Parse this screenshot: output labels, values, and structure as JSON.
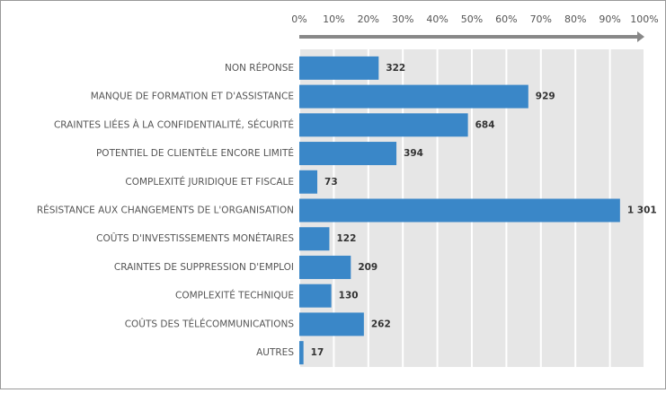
{
  "chart_data": {
    "type": "bar",
    "orientation": "horizontal",
    "categories": [
      "NON RÉPONSE",
      "MANQUE DE FORMATION ET D'ASSISTANCE",
      "CRAINTES LIÉES À LA CONFIDENTIALITÉ, SÉCURITÉ",
      "POTENTIEL DE CLIENTÈLE ENCORE LIMITÉ",
      "COMPLEXITÉ JURIDIQUE ET FISCALE",
      "RÉSISTANCE AUX CHANGEMENTS DE L'ORGANISATION",
      "COÛTS D'INVESTISSEMENTS MONÉTAIRES",
      "CRAINTES DE SUPPRESSION D'EMPLOI",
      "COMPLEXITÉ TECHNIQUE",
      "COÛTS DES TÉLÉCOMMUNICATIONS",
      "AUTRES"
    ],
    "values": [
      322,
      929,
      684,
      394,
      73,
      1301,
      122,
      209,
      130,
      262,
      17
    ],
    "value_labels": [
      "322",
      "929",
      "684",
      "394",
      "73",
      "1 301",
      "122",
      "209",
      "130",
      "262",
      "17"
    ],
    "color": "#3a87c8",
    "xlim": [
      0,
      1400
    ],
    "xticks": [
      {
        "value": 0,
        "label": "0%"
      },
      {
        "value": 140,
        "label": "10%"
      },
      {
        "value": 280,
        "label": "20%"
      },
      {
        "value": 420,
        "label": "30%"
      },
      {
        "value": 560,
        "label": "40%"
      },
      {
        "value": 700,
        "label": "50%"
      },
      {
        "value": 840,
        "label": "60%"
      },
      {
        "value": 980,
        "label": "70%"
      },
      {
        "value": 1120,
        "label": "80%"
      },
      {
        "value": 1260,
        "label": "90%"
      },
      {
        "value": 1400,
        "label": "100%"
      }
    ],
    "grid": true
  }
}
